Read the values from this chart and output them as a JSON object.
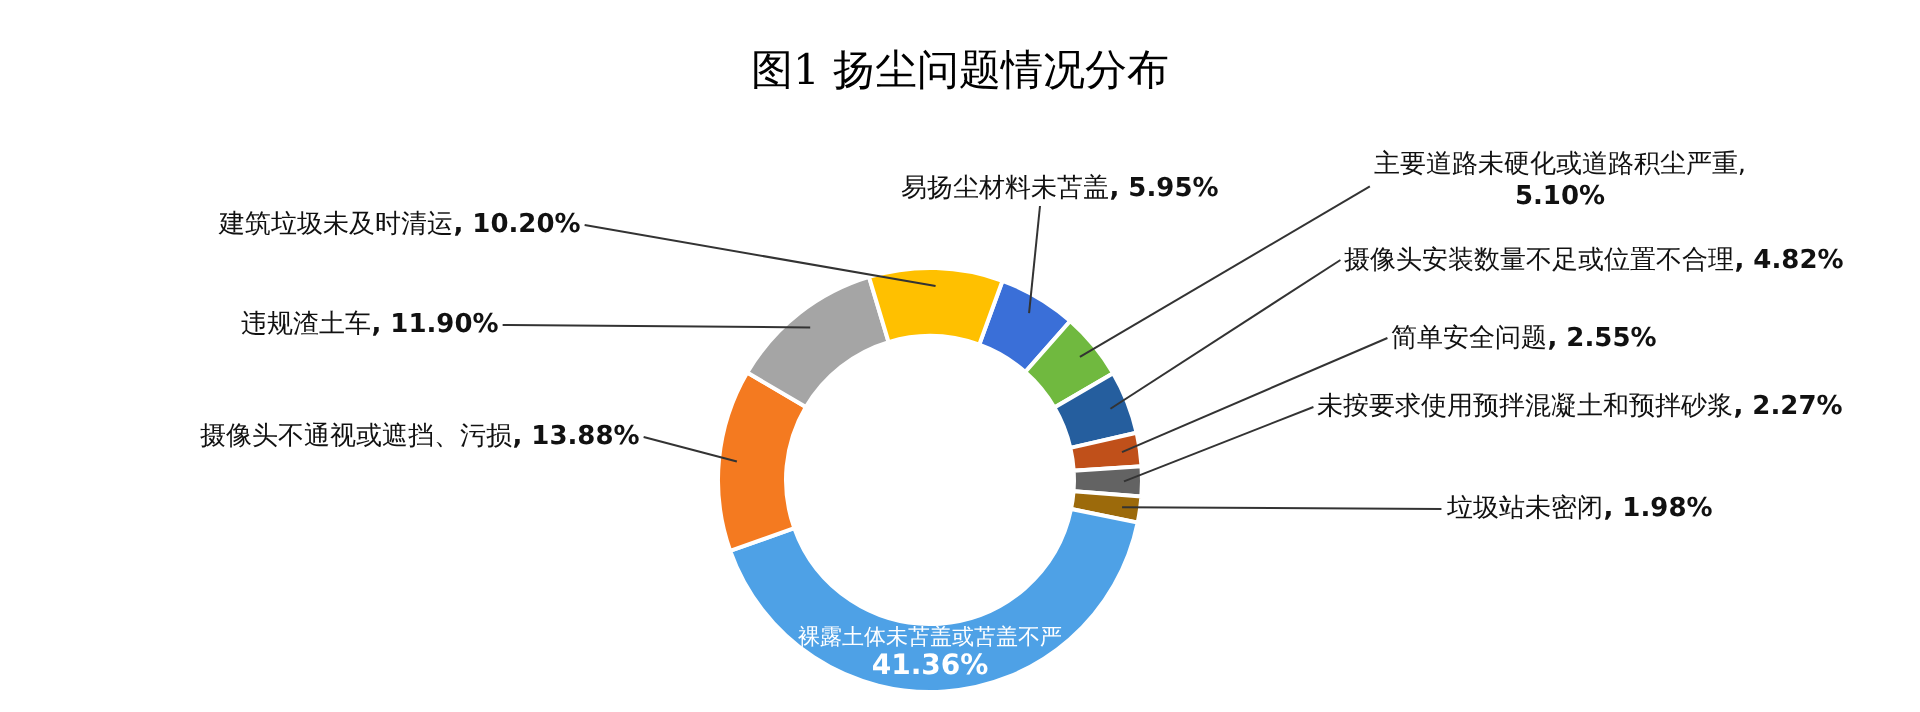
{
  "chart_data": {
    "type": "donut",
    "title": "图1  扬尘问题情况分布",
    "categories": [
      "易扬尘材料未苫盖",
      "主要道路未硬化或道路积尘严重",
      "摄像头安装数量不足或位置不合理",
      "简单安全问题",
      "未按要求使用预拌混凝土和预拌砂浆",
      "垃圾站未密闭",
      "裸露土体未苫盖或苫盖不严",
      "摄像头不通视或遮挡、污损",
      "违规渣土车",
      "建筑垃圾未及时清运"
    ],
    "values": [
      5.95,
      5.1,
      4.82,
      2.55,
      2.27,
      1.98,
      41.36,
      13.88,
      11.9,
      10.2
    ],
    "value_labels": [
      ", 5.95%",
      ", 5.10%",
      ", 4.82%",
      ", 2.55%",
      ", 2.27%",
      ", 1.98%",
      "41.36%",
      ", 13.88%",
      ", 11.90%",
      ", 10.20%"
    ],
    "colors": [
      "#3a6fd8",
      "#70b93f",
      "#255e9e",
      "#c0501a",
      "#636363",
      "#9c6a0b",
      "#4ea1e6",
      "#f47a20",
      "#a5a5a5",
      "#ffc000"
    ]
  }
}
